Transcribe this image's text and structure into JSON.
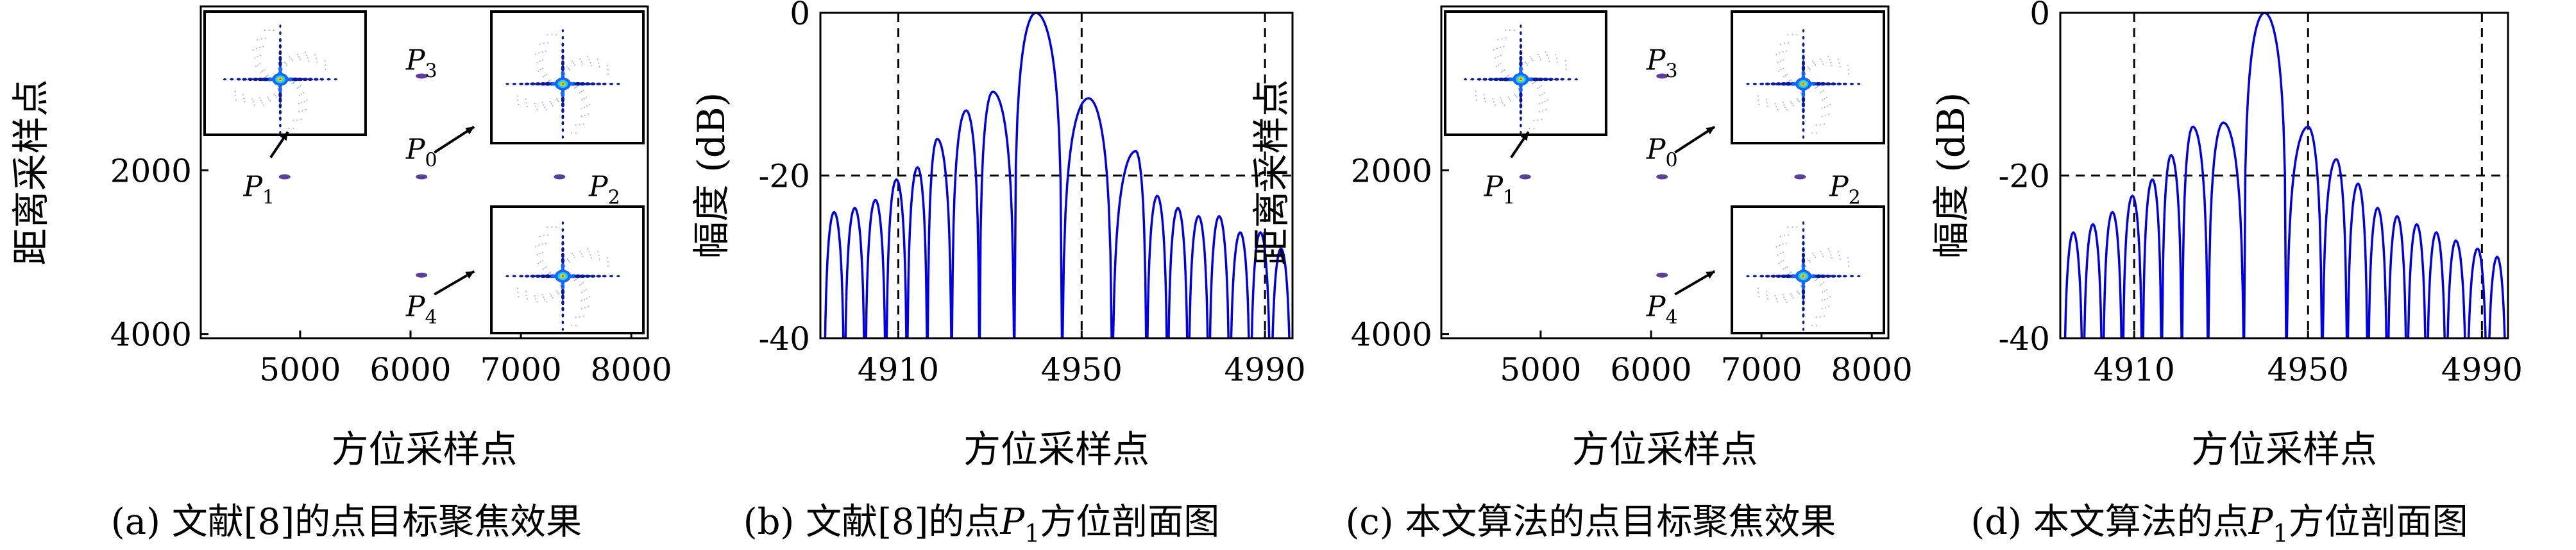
{
  "figure": {
    "captions": [
      "(a) 文献[8]的点目标聚焦效果",
      "(b) 文献[8]的点P1方位剖面图",
      "(c) 本文算法的点目标聚焦效果",
      "(d) 本文算法的点P1方位剖面图"
    ]
  },
  "colors": {
    "curve": "#0000e6",
    "axis": "#000000",
    "inset_outer": "#0a1a9c",
    "inset_mid": "#1565ff",
    "inset_inner": "#6fe06f",
    "inset_core": "#ff3b1e"
  },
  "chart_data": [
    {
      "id": "a",
      "type": "scatter",
      "title": "",
      "xlabel": "方位采样点",
      "ylabel": "距离采样点",
      "xlim": [
        4100,
        8150
      ],
      "ylim": [
        4050,
        0
      ],
      "xticks": [
        5000,
        6000,
        7000,
        8000
      ],
      "yticks": [
        2000,
        4000
      ],
      "points": [
        {
          "label": "P1",
          "sub": "1",
          "x": 4860,
          "y": 2080
        },
        {
          "label": "P0",
          "sub": "0",
          "x": 6100,
          "y": 2080
        },
        {
          "label": "P2",
          "sub": "2",
          "x": 7350,
          "y": 2080
        },
        {
          "label": "P3",
          "sub": "3",
          "x": 6100,
          "y": 850
        },
        {
          "label": "P4",
          "sub": "4",
          "x": 6100,
          "y": 3280
        }
      ]
    },
    {
      "id": "b",
      "type": "line",
      "title": "",
      "xlabel": "方位采样点",
      "ylabel": "幅度 (dB)",
      "xlim": [
        4893,
        4996
      ],
      "ylim": [
        -40,
        0
      ],
      "xticks": [
        4910,
        4950,
        4990
      ],
      "yticks": [
        0,
        -20,
        -40
      ],
      "dashed_x": [
        4910,
        4950,
        4990
      ],
      "dashed_y": [
        0,
        -20
      ],
      "peak": 4940,
      "lobes": [
        {
          "x": 4896.0,
          "y": -24.5
        },
        {
          "x": 4900.5,
          "y": -24
        },
        {
          "x": 4905,
          "y": -23
        },
        {
          "x": 4909.6,
          "y": -20.5
        },
        {
          "x": 4914.2,
          "y": -19
        },
        {
          "x": 4918.5,
          "y": -15.5
        },
        {
          "x": 4924.8,
          "y": -12
        },
        {
          "x": 4930.6,
          "y": -9.7
        },
        {
          "x": 4940,
          "y": 0
        },
        {
          "x": 4951.5,
          "y": -10.5
        },
        {
          "x": 4961.8,
          "y": -17
        },
        {
          "x": 4966.5,
          "y": -22.5
        },
        {
          "x": 4971,
          "y": -24
        },
        {
          "x": 4975.5,
          "y": -25
        },
        {
          "x": 4980,
          "y": -25
        },
        {
          "x": 4984.6,
          "y": -27
        },
        {
          "x": 4989,
          "y": -27
        },
        {
          "x": 4993.5,
          "y": -29
        }
      ]
    },
    {
      "id": "c",
      "type": "scatter",
      "title": "",
      "xlabel": "方位采样点",
      "ylabel": "距离采样点",
      "xlim": [
        4100,
        8150
      ],
      "ylim": [
        4050,
        0
      ],
      "xticks": [
        5000,
        6000,
        7000,
        8000
      ],
      "yticks": [
        2000,
        4000
      ],
      "points": [
        {
          "label": "P1",
          "sub": "1",
          "x": 4860,
          "y": 2080
        },
        {
          "label": "P0",
          "sub": "0",
          "x": 6100,
          "y": 2080
        },
        {
          "label": "P2",
          "sub": "2",
          "x": 7350,
          "y": 2080
        },
        {
          "label": "P3",
          "sub": "3",
          "x": 6100,
          "y": 850
        },
        {
          "label": "P4",
          "sub": "4",
          "x": 6100,
          "y": 3280
        }
      ]
    },
    {
      "id": "d",
      "type": "line",
      "title": "",
      "xlabel": "方位采样点",
      "ylabel": "幅度 (dB)",
      "xlim": [
        4893,
        4996
      ],
      "ylim": [
        -40,
        0
      ],
      "xticks": [
        4910,
        4950,
        4990
      ],
      "yticks": [
        0,
        -20,
        -40
      ],
      "dashed_x": [
        4910,
        4950,
        4990
      ],
      "dashed_y": [
        0,
        -20
      ],
      "peak": 4940,
      "lobes": [
        {
          "x": 4896.0,
          "y": -27
        },
        {
          "x": 4900.5,
          "y": -26
        },
        {
          "x": 4905,
          "y": -24.5
        },
        {
          "x": 4909.6,
          "y": -22.5
        },
        {
          "x": 4914.2,
          "y": -20.5
        },
        {
          "x": 4918.5,
          "y": -17.5
        },
        {
          "x": 4923.5,
          "y": -14
        },
        {
          "x": 4930.5,
          "y": -13.5
        },
        {
          "x": 4940,
          "y": 0
        },
        {
          "x": 4950,
          "y": -14
        },
        {
          "x": 4956.5,
          "y": -18
        },
        {
          "x": 4961.5,
          "y": -21
        },
        {
          "x": 4966,
          "y": -24
        },
        {
          "x": 4970.5,
          "y": -25
        },
        {
          "x": 4975,
          "y": -26
        },
        {
          "x": 4979.5,
          "y": -27
        },
        {
          "x": 4984,
          "y": -28
        },
        {
          "x": 4989,
          "y": -29
        },
        {
          "x": 4993.5,
          "y": -30
        }
      ]
    }
  ]
}
